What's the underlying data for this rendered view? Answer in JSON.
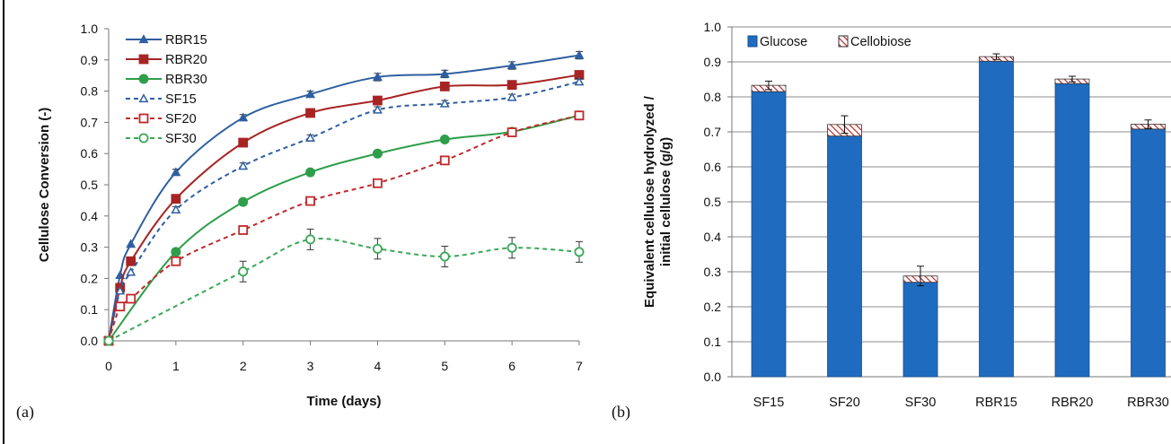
{
  "panels": [
    {
      "letter": "(a)"
    },
    {
      "letter": "(b)"
    }
  ],
  "chart_data": [
    {
      "type": "line",
      "xlabel": "Time (days)",
      "ylabel": "Cellulose Conversion (-)",
      "xlim": [
        0,
        7
      ],
      "ylim": [
        0,
        1.0
      ],
      "xticks": [
        "0",
        "1",
        "2",
        "3",
        "4",
        "5",
        "6",
        "7"
      ],
      "yticks": [
        "0.0",
        "0.1",
        "0.2",
        "0.3",
        "0.4",
        "0.5",
        "0.6",
        "0.7",
        "0.8",
        "0.9",
        "1.0"
      ],
      "legend_position": "top-left",
      "grid": false,
      "series": [
        {
          "name": "RBR15",
          "color": "#2f5fa0",
          "style": "solid",
          "marker": "triangle-filled",
          "x": [
            0,
            0.17,
            0.33,
            1,
            2,
            3,
            4,
            5,
            6,
            7
          ],
          "y": [
            0.0,
            0.21,
            0.31,
            0.54,
            0.715,
            0.79,
            0.845,
            0.855,
            0.882,
            0.915
          ],
          "err": [
            0,
            0,
            0,
            0.01,
            0.01,
            0.01,
            0.012,
            0.012,
            0.012,
            0.012
          ]
        },
        {
          "name": "RBR20",
          "color": "#a82424",
          "style": "solid",
          "marker": "square-filled",
          "x": [
            0,
            0.17,
            0.33,
            1,
            2,
            3,
            4,
            5,
            6,
            7
          ],
          "y": [
            0.0,
            0.17,
            0.255,
            0.455,
            0.635,
            0.73,
            0.77,
            0.815,
            0.82,
            0.852
          ],
          "err": [
            0,
            0,
            0,
            0.01,
            0.01,
            0.01,
            0.01,
            0.01,
            0.01,
            0.01
          ]
        },
        {
          "name": "RBR30",
          "color": "#2e9e4a",
          "style": "solid",
          "marker": "circle-filled",
          "x": [
            0,
            1,
            2,
            3,
            4,
            5,
            6,
            7
          ],
          "y": [
            0.0,
            0.285,
            0.445,
            0.54,
            0.6,
            0.645,
            0.67,
            0.722
          ],
          "err": [
            0,
            0.008,
            0.008,
            0.008,
            0.008,
            0.008,
            0.008,
            0.008
          ]
        },
        {
          "name": "SF15",
          "color": "#2f5fa0",
          "style": "dashed",
          "marker": "triangle-open",
          "x": [
            0,
            0.17,
            0.33,
            1,
            2,
            3,
            4,
            5,
            6,
            7
          ],
          "y": [
            0.0,
            0.16,
            0.22,
            0.42,
            0.56,
            0.65,
            0.74,
            0.76,
            0.78,
            0.83
          ],
          "err": [
            0,
            0,
            0,
            0.01,
            0.01,
            0.01,
            0.01,
            0.01,
            0.01,
            0.01
          ]
        },
        {
          "name": "SF20",
          "color": "#c0282a",
          "style": "dashed",
          "marker": "square-open",
          "x": [
            0,
            0.17,
            0.33,
            1,
            2,
            3,
            4,
            5,
            6,
            7
          ],
          "y": [
            0.0,
            0.11,
            0.135,
            0.255,
            0.355,
            0.448,
            0.505,
            0.578,
            0.668,
            0.722
          ],
          "err": [
            0,
            0,
            0,
            0.01,
            0.01,
            0.01,
            0.01,
            0.01,
            0.01,
            0.01
          ]
        },
        {
          "name": "SF30",
          "color": "#3aa857",
          "style": "dashed",
          "marker": "circle-open",
          "x": [
            0,
            2,
            3,
            4,
            5,
            6,
            7
          ],
          "y": [
            0.0,
            0.222,
            0.325,
            0.295,
            0.27,
            0.298,
            0.285
          ],
          "err": [
            0,
            0.033,
            0.033,
            0.033,
            0.033,
            0.033,
            0.033
          ]
        }
      ]
    },
    {
      "type": "bar",
      "stacked": true,
      "ylabel": "Equivalent cellulose hydrolyzed / initial cellulose (g/g)",
      "ylabel_lines": [
        "Equivalent cellulose hydrolyzed /",
        "initial cellulose (g/g)"
      ],
      "ylim": [
        0,
        1.0
      ],
      "yticks": [
        "0.0",
        "0.1",
        "0.2",
        "0.3",
        "0.4",
        "0.5",
        "0.6",
        "0.7",
        "0.8",
        "0.9",
        "1.0"
      ],
      "grid": true,
      "legend_position": "top-left",
      "categories": [
        "SF15",
        "SF20",
        "SF30",
        "RBR15",
        "RBR20",
        "RBR30"
      ],
      "series": [
        {
          "name": "Glucose",
          "color": "#1f6bbf",
          "pattern": "solid",
          "values": [
            0.815,
            0.688,
            0.27,
            0.902,
            0.838,
            0.708
          ]
        },
        {
          "name": "Cellobiose",
          "color": "#c0282a",
          "pattern": "hatched",
          "values": [
            0.018,
            0.033,
            0.018,
            0.013,
            0.013,
            0.014
          ]
        }
      ],
      "error": [
        0.012,
        0.025,
        0.028,
        0.008,
        0.008,
        0.012
      ]
    }
  ]
}
